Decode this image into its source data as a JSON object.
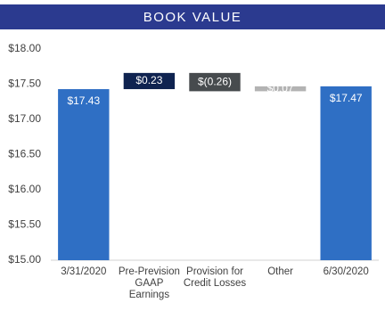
{
  "chart_data": {
    "type": "waterfall",
    "title": "BOOK VALUE",
    "categories": [
      "3/31/2020",
      "Pre-Prevision GAAP Earnings",
      "Provision for Credit Losses",
      "Other",
      "6/30/2020"
    ],
    "values": [
      17.43,
      0.23,
      -0.26,
      0.07,
      17.47
    ],
    "value_labels": [
      "$17.43",
      "$0.23",
      "$(0.26)",
      "$0.07",
      "$17.47"
    ],
    "measure": [
      "absolute",
      "relative",
      "relative",
      "relative",
      "total"
    ],
    "colors": [
      "#2f6fc4",
      "#0f2350",
      "#474b4e",
      "#b3b3b3",
      "#2f6fc4"
    ],
    "ylim": [
      15,
      18
    ],
    "yticks": [
      {
        "value": 15,
        "label": "$15.00"
      },
      {
        "value": 15.5,
        "label": "$15.50"
      },
      {
        "value": 16,
        "label": "$16.00"
      },
      {
        "value": 16.5,
        "label": "$16.50"
      },
      {
        "value": 17,
        "label": "$17.00"
      },
      {
        "value": 17.5,
        "label": "$17.50"
      },
      {
        "value": 18,
        "label": "$18.00"
      }
    ]
  }
}
